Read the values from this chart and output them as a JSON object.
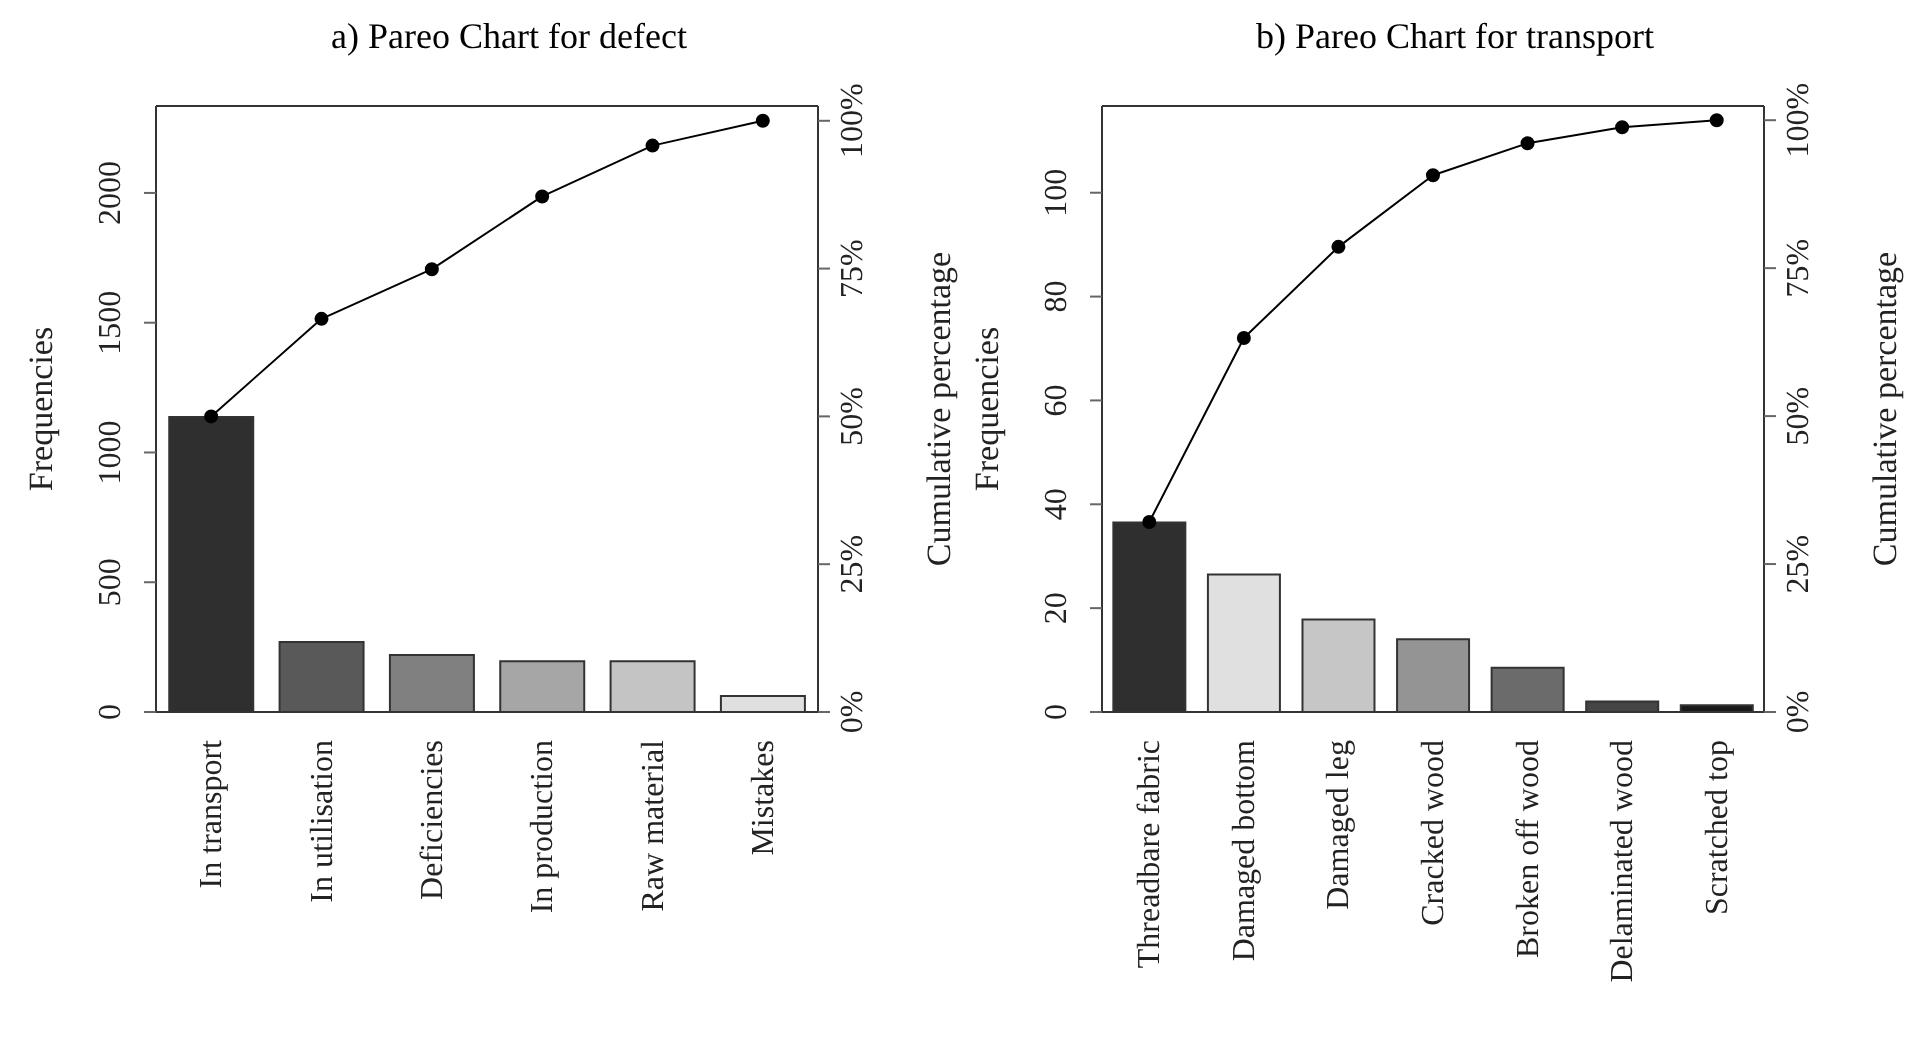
{
  "chart_data": [
    {
      "type": "bar",
      "title": "a) Pareo Chart for defect",
      "ylabel": "Frequencies",
      "y2label": "Cumulative percentage",
      "categories": [
        "In transport",
        "In utilisation",
        "Deficiencies",
        "In production",
        "Raw material",
        "Mistakes"
      ],
      "series": [
        {
          "colors": [
            "#2f2f2f",
            "#595959",
            "#808080",
            "#a6a6a6",
            "#c4c4c4",
            "#e0e0e0"
          ],
          "values": [
            1137,
            270,
            220,
            196,
            196,
            62
          ]
        },
        {
          "type": "line",
          "axis": "y2",
          "color": "#000000",
          "marker": "circle",
          "values": [
            50,
            66.5,
            74.9,
            87.2,
            95.8,
            100
          ]
        }
      ],
      "ylim": [
        0,
        2335
      ],
      "yticks": [
        0,
        500,
        1000,
        1500,
        2000
      ],
      "y2lim": [
        0,
        102.5
      ],
      "y2ticks": [
        {
          "value": 0,
          "label": "0%"
        },
        {
          "value": 25,
          "label": "25%"
        },
        {
          "value": 50,
          "label": "50%"
        },
        {
          "value": 75,
          "label": "75%"
        },
        {
          "value": 100,
          "label": "100%"
        }
      ]
    },
    {
      "type": "bar",
      "title": "b) Pareo Chart for transport",
      "ylabel": "Frequencies",
      "y2label": "Cumulative percentage",
      "categories": [
        "Threadbare fabric",
        "Damaged bottom",
        "Damaged leg",
        "Cracked wood",
        "Broken off wood",
        "Delaminated wood",
        "Scratched top"
      ],
      "series": [
        {
          "colors": [
            "#2f2f2f",
            "#e0e0e0",
            "#c6c6c6",
            "#949494",
            "#6b6b6b",
            "#454545",
            "#1a1a1a"
          ],
          "values": [
            36.5,
            26.5,
            17.8,
            14,
            8.5,
            2,
            1.3
          ]
        },
        {
          "type": "line",
          "axis": "y2",
          "color": "#000000",
          "marker": "circle",
          "values": [
            32.1,
            63.2,
            78.6,
            90.7,
            96.1,
            98.8,
            100
          ]
        }
      ],
      "ylim": [
        0,
        116.7
      ],
      "yticks": [
        0,
        20,
        40,
        60,
        80,
        100
      ],
      "y2lim": [
        0,
        102.4
      ],
      "y2ticks": [
        {
          "value": 0,
          "label": "0%"
        },
        {
          "value": 25,
          "label": "25%"
        },
        {
          "value": 50,
          "label": "50%"
        },
        {
          "value": 75,
          "label": "75%"
        },
        {
          "value": 100,
          "label": "100%"
        }
      ]
    }
  ]
}
